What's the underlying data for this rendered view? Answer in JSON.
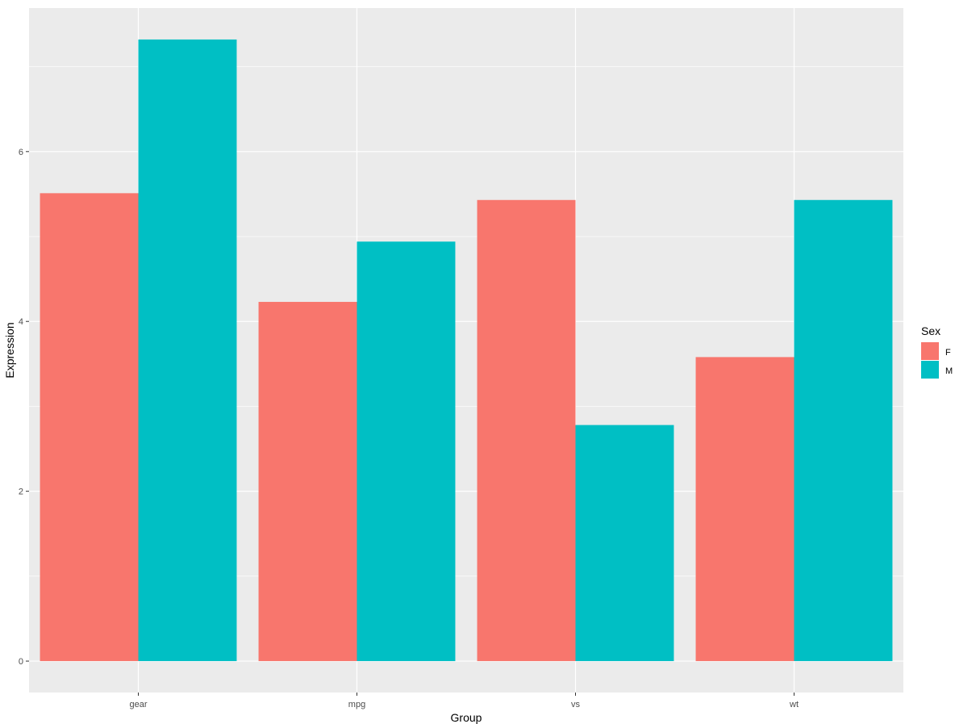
{
  "chart_data": {
    "type": "bar",
    "categories": [
      "gear",
      "mpg",
      "vs",
      "wt"
    ],
    "series": [
      {
        "name": "F",
        "values": [
          5.51,
          4.23,
          5.43,
          3.58
        ],
        "color": "#F8766D"
      },
      {
        "name": "M",
        "values": [
          7.32,
          4.94,
          2.78,
          5.43
        ],
        "color": "#00BFC4"
      }
    ],
    "xlabel": "Group",
    "ylabel": "Expression",
    "ylim": [
      -0.37,
      7.69
    ],
    "yticks": [
      0,
      2,
      4,
      6
    ],
    "grid": true,
    "legend": {
      "title": "Sex",
      "position": "right"
    },
    "colors": {
      "panel": "#EBEBEB",
      "grid": "#FFFFFF"
    }
  }
}
